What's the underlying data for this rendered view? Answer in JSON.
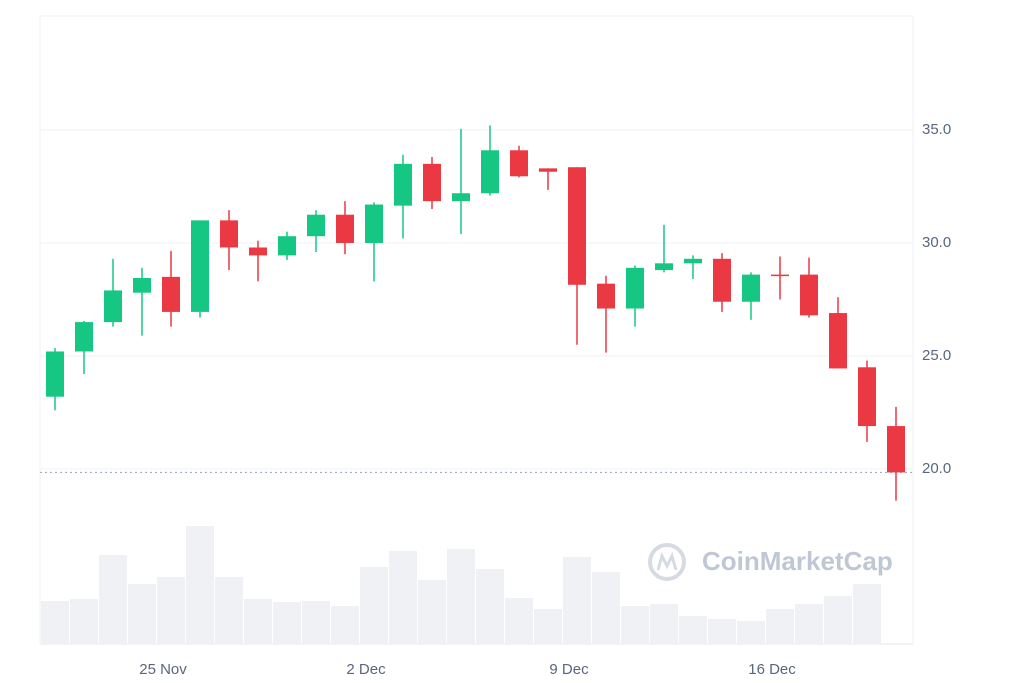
{
  "chart_data": {
    "type": "candlestick",
    "categories": [
      null,
      null,
      null,
      null,
      "25 Nov",
      null,
      null,
      null,
      null,
      null,
      null,
      "2 Dec",
      null,
      null,
      null,
      null,
      null,
      null,
      "9 Dec",
      null,
      null,
      null,
      null,
      null,
      null,
      "16 Dec",
      null,
      null,
      null,
      null
    ],
    "open": [
      23.2,
      25.2,
      26.5,
      27.8,
      28.5,
      26.95,
      31.0,
      29.8,
      29.45,
      30.3,
      31.25,
      30.0,
      31.65,
      33.5,
      31.85,
      32.2,
      34.1,
      33.3,
      33.35,
      28.2,
      27.1,
      28.8,
      29.1,
      29.3,
      27.4,
      28.6,
      28.6,
      26.9,
      24.5,
      21.9
    ],
    "high": [
      25.35,
      26.55,
      29.3,
      28.9,
      29.65,
      31.0,
      31.45,
      30.1,
      30.5,
      31.45,
      31.85,
      31.8,
      33.9,
      33.8,
      35.05,
      35.2,
      34.3,
      33.3,
      33.35,
      28.55,
      29.0,
      30.8,
      29.45,
      29.55,
      28.7,
      29.4,
      29.35,
      27.6,
      24.8,
      22.75
    ],
    "low": [
      22.6,
      24.2,
      26.3,
      25.9,
      26.3,
      26.7,
      28.8,
      28.3,
      29.25,
      29.6,
      29.5,
      28.3,
      30.2,
      31.5,
      30.4,
      32.1,
      32.9,
      32.35,
      25.5,
      25.15,
      26.3,
      28.7,
      28.4,
      26.95,
      26.6,
      27.5,
      26.7,
      24.45,
      21.2,
      18.6
    ],
    "close": [
      25.2,
      26.5,
      27.9,
      28.45,
      26.95,
      31.0,
      29.8,
      29.45,
      30.3,
      31.25,
      30.0,
      31.7,
      33.5,
      31.85,
      32.2,
      34.1,
      32.95,
      33.15,
      28.15,
      27.1,
      28.9,
      29.1,
      29.3,
      27.4,
      28.6,
      28.55,
      26.8,
      24.45,
      21.9,
      19.85
    ],
    "volume": [
      43,
      45,
      89,
      60,
      67,
      118,
      67,
      45,
      42,
      43,
      38,
      77,
      93,
      64,
      95,
      75,
      46,
      35,
      87,
      72,
      38,
      40,
      28,
      25,
      23,
      35,
      40,
      48,
      60,
      null
    ],
    "up_color": "#16c784",
    "down_color": "#ea3943",
    "volume_color": "#eff1f4",
    "price_line": 19.85,
    "ylim": [
      12.26,
      40.04
    ],
    "yticks": [
      {
        "value": 20,
        "label": "20.0"
      },
      {
        "value": 25,
        "label": "25.0"
      },
      {
        "value": 30,
        "label": "30.0"
      },
      {
        "value": 35,
        "label": "35.0"
      }
    ],
    "grid": true,
    "watermark": "CoinMarketCap"
  }
}
